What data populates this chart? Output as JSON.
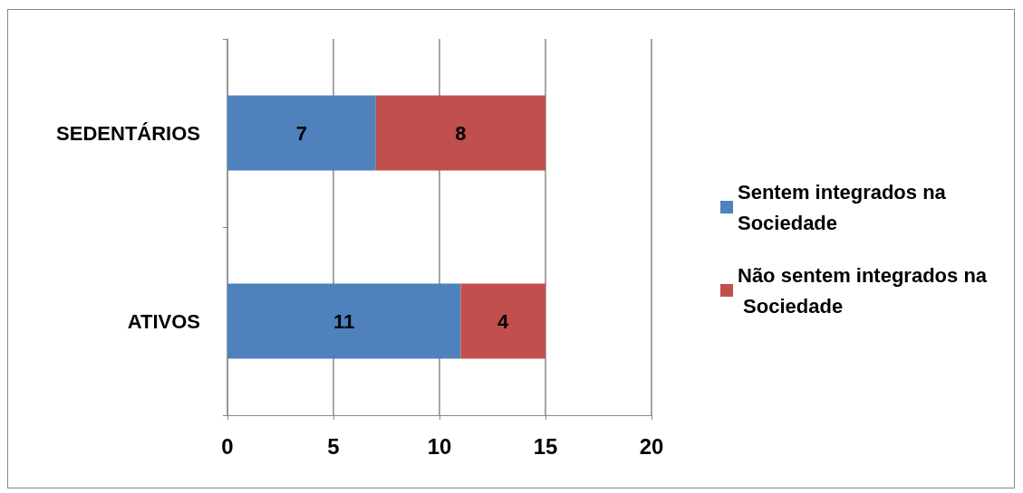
{
  "chart_data": {
    "type": "bar",
    "orientation": "horizontal",
    "stacked": true,
    "categories": [
      "SEDENTÁRIOS",
      "ATIVOS"
    ],
    "series": [
      {
        "name": "Sentem integrados na Sociedade",
        "color": "#4f81bd",
        "values": [
          7,
          11
        ]
      },
      {
        "name": "Não sentem integrados na Sociedade",
        "color": "#c0504d",
        "values": [
          8,
          4
        ]
      }
    ],
    "xlim": [
      0,
      20
    ],
    "xticks": [
      0,
      5,
      10,
      15,
      20
    ],
    "grid": "x",
    "legend": "right",
    "data_labels": true
  }
}
